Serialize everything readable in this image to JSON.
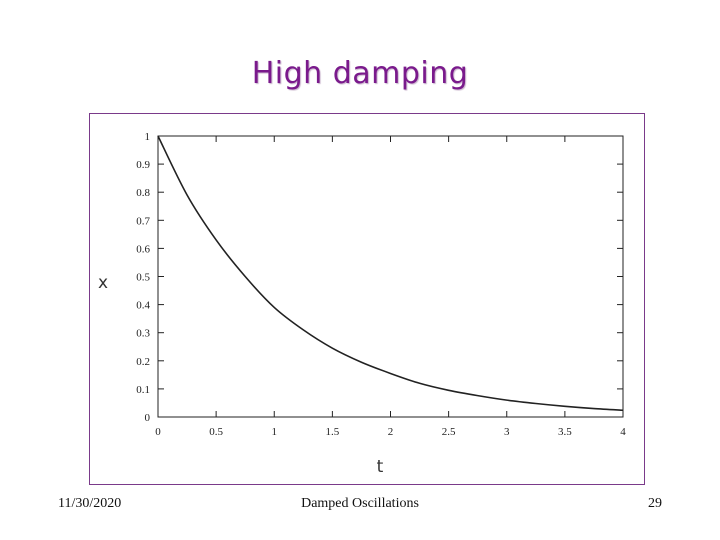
{
  "slide": {
    "title": "High damping",
    "footer_date": "11/30/2020",
    "footer_center": "Damped Oscillations",
    "page_number": "29",
    "title_color": "#7a1a8c",
    "frame_color": "#7a3a8a"
  },
  "chart_data": {
    "type": "line",
    "xlabel": "t",
    "ylabel": "x",
    "xlim": [
      0,
      4
    ],
    "ylim": [
      0,
      1
    ],
    "x_ticks": [
      0,
      0.5,
      1,
      1.5,
      2,
      2.5,
      3,
      3.5,
      4
    ],
    "x_tick_labels": [
      "0",
      "0.5",
      "1",
      "1.5",
      "2",
      "2.5",
      "3",
      "3.5",
      "4"
    ],
    "y_ticks": [
      0,
      0.1,
      0.2,
      0.3,
      0.4,
      0.5,
      0.6,
      0.7,
      0.8,
      0.9,
      1
    ],
    "y_tick_labels": [
      "0",
      "0.1",
      "0.2",
      "0.3",
      "0.4",
      "0.5",
      "0.6",
      "0.7",
      "0.8",
      "0.9",
      "1"
    ],
    "grid": false,
    "series": [
      {
        "x": [
          0,
          0.25,
          0.5,
          0.75,
          1,
          1.25,
          1.5,
          1.75,
          2,
          2.25,
          2.5,
          2.75,
          3,
          3.25,
          3.5,
          3.75,
          4
        ],
        "values": [
          1,
          0.79,
          0.63,
          0.5,
          0.39,
          0.31,
          0.245,
          0.195,
          0.155,
          0.12,
          0.095,
          0.076,
          0.06,
          0.048,
          0.038,
          0.03,
          0.024
        ]
      }
    ]
  }
}
